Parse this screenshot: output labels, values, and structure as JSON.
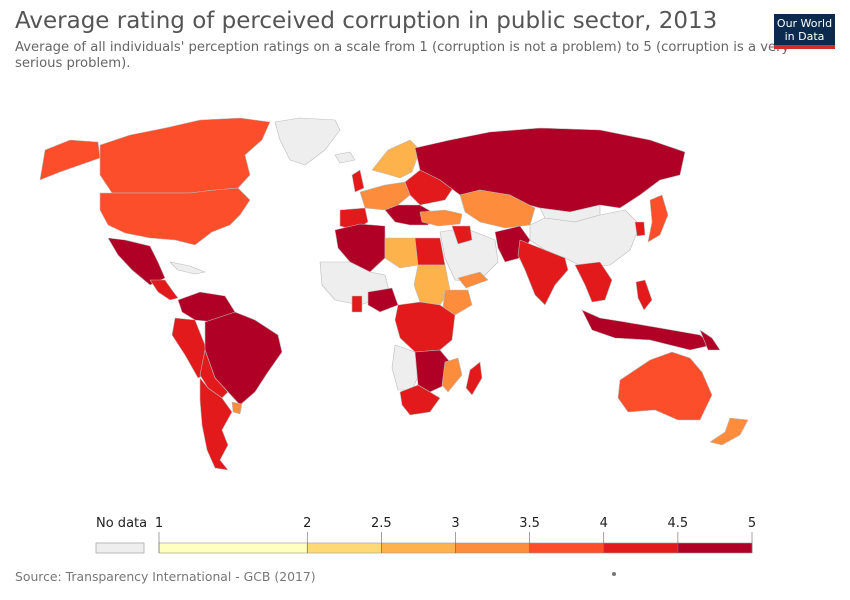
{
  "header": {
    "title": "Average rating of perceived corruption in public sector, 2013",
    "subtitle": "Average of all individuals' perception ratings on a scale from 1 (corruption is not a problem) to 5 (corruption is a very serious problem).",
    "logo_line1": "Our World",
    "logo_line2": "in Data"
  },
  "legend": {
    "no_data_label": "No data",
    "ticks": [
      "1",
      "2",
      "2.5",
      "3",
      "3.5",
      "4",
      "4.5",
      "5"
    ],
    "no_data_color": "#eeeeee",
    "bins": [
      {
        "from": 1,
        "to": 2,
        "color": "#ffffbf"
      },
      {
        "from": 2,
        "to": 2.5,
        "color": "#fed976"
      },
      {
        "from": 2.5,
        "to": 3,
        "color": "#feb24c"
      },
      {
        "from": 3,
        "to": 3.5,
        "color": "#fd8d3c"
      },
      {
        "from": 3.5,
        "to": 4,
        "color": "#fc4e2a"
      },
      {
        "from": 4,
        "to": 4.5,
        "color": "#e31a1c"
      },
      {
        "from": 4.5,
        "to": 5,
        "color": "#b10026"
      }
    ]
  },
  "source": "Source: Transparency International - GCB (2017)"
}
